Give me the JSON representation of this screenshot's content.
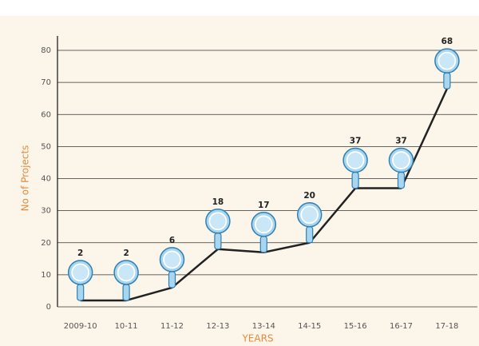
{
  "chart_data": {
    "type": "line",
    "x_label": "YEARS",
    "y_label": "No of Projects",
    "categories": [
      "2009-10",
      "10-11",
      "11-12",
      "12-13",
      "13-14",
      "14-15",
      "15-16",
      "16-17",
      "17-18"
    ],
    "values": [
      2,
      2,
      6,
      18,
      17,
      20,
      37,
      37,
      68
    ],
    "color": "#222222",
    "marker_color": "#a9d6ef",
    "ylim": [
      0,
      80
    ],
    "yticks": [
      0,
      10,
      20,
      30,
      40,
      50,
      60,
      70,
      80
    ],
    "grid": true
  }
}
